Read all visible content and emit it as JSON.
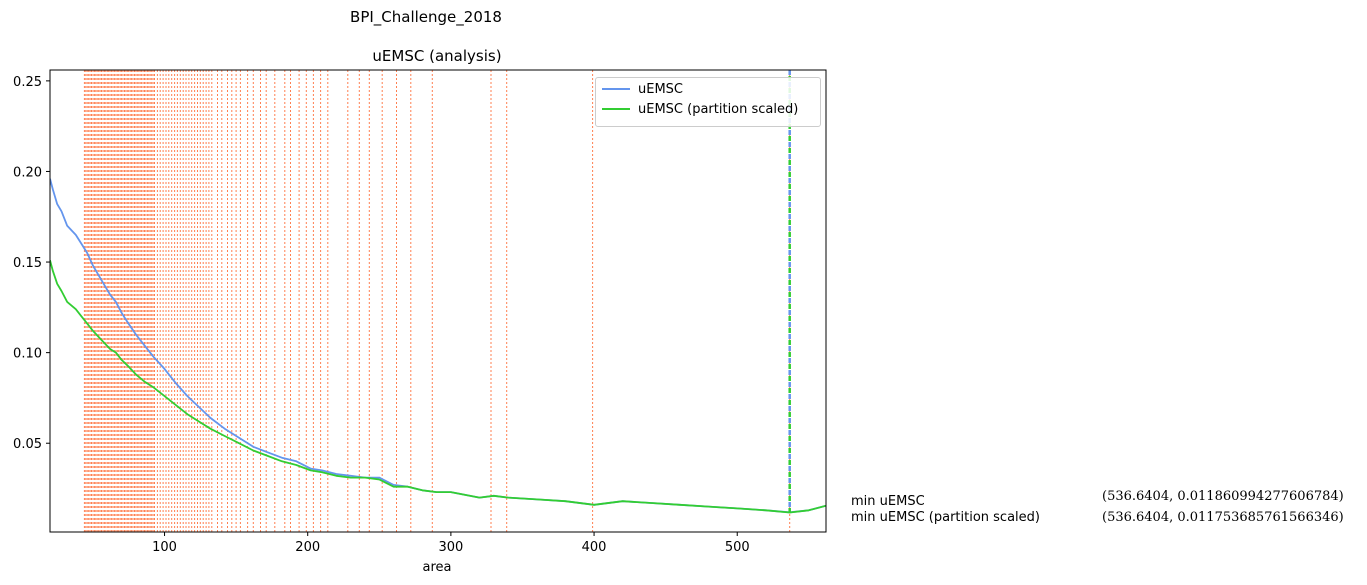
{
  "suptitle": "BPI_Challenge_2018",
  "chart_data": {
    "type": "line",
    "title": "uEMSC (analysis)",
    "xlabel": "area",
    "ylabel": "",
    "xlim": [
      20,
      562
    ],
    "ylim": [
      0.001,
      0.256
    ],
    "xticks": [
      100,
      200,
      300,
      400,
      500
    ],
    "yticks": [
      0.05,
      0.1,
      0.15,
      0.2,
      0.25
    ],
    "ytick_labels": [
      "0.05",
      "0.10",
      "0.15",
      "0.20",
      "0.25"
    ],
    "xtick_labels": [
      "100",
      "200",
      "300",
      "400",
      "500"
    ],
    "grid": false,
    "legend_position": "top-right",
    "colors": {
      "uemsc": "#6495ed",
      "uemsc_scaled": "#32cd32",
      "vlines": "#ff7f50"
    },
    "series": [
      {
        "name": "uEMSC",
        "x": [
          20,
          22,
          25,
          28,
          32,
          38,
          42,
          46,
          50,
          56,
          62,
          66,
          70,
          74,
          80,
          86,
          92,
          100,
          108,
          116,
          124,
          132,
          142,
          152,
          162,
          172,
          182,
          192,
          202,
          210,
          220,
          230,
          240,
          250,
          260,
          270,
          280,
          290,
          300,
          320,
          330,
          340,
          360,
          380,
          400,
          420,
          440,
          460,
          480,
          500,
          520,
          536.6404,
          550,
          562
        ],
        "y": [
          0.196,
          0.19,
          0.182,
          0.178,
          0.17,
          0.165,
          0.16,
          0.155,
          0.148,
          0.14,
          0.132,
          0.128,
          0.122,
          0.117,
          0.11,
          0.104,
          0.098,
          0.091,
          0.083,
          0.076,
          0.07,
          0.064,
          0.058,
          0.053,
          0.048,
          0.045,
          0.042,
          0.04,
          0.036,
          0.035,
          0.033,
          0.032,
          0.031,
          0.031,
          0.027,
          0.026,
          0.024,
          0.023,
          0.023,
          0.02,
          0.021,
          0.02,
          0.019,
          0.018,
          0.016,
          0.018,
          0.017,
          0.016,
          0.015,
          0.014,
          0.013,
          0.01186,
          0.013,
          0.0155
        ]
      },
      {
        "name": "uEMSC (partition scaled)",
        "x": [
          20,
          22,
          25,
          28,
          32,
          38,
          42,
          46,
          50,
          56,
          62,
          66,
          70,
          74,
          80,
          86,
          92,
          100,
          108,
          116,
          124,
          132,
          142,
          152,
          162,
          172,
          182,
          192,
          202,
          210,
          220,
          230,
          240,
          250,
          260,
          270,
          280,
          290,
          300,
          320,
          330,
          340,
          360,
          380,
          400,
          420,
          440,
          460,
          480,
          500,
          520,
          536.6404,
          550,
          562
        ],
        "y": [
          0.151,
          0.145,
          0.138,
          0.134,
          0.128,
          0.124,
          0.12,
          0.116,
          0.112,
          0.107,
          0.102,
          0.1,
          0.096,
          0.093,
          0.088,
          0.084,
          0.081,
          0.076,
          0.071,
          0.066,
          0.062,
          0.058,
          0.054,
          0.05,
          0.046,
          0.043,
          0.04,
          0.038,
          0.035,
          0.034,
          0.032,
          0.031,
          0.031,
          0.03,
          0.026,
          0.026,
          0.024,
          0.023,
          0.023,
          0.02,
          0.021,
          0.02,
          0.019,
          0.018,
          0.016,
          0.018,
          0.017,
          0.016,
          0.015,
          0.014,
          0.013,
          0.011754,
          0.013,
          0.0155
        ]
      }
    ],
    "vlines": [
      44,
      45,
      46,
      47,
      48,
      49,
      50,
      51,
      52,
      53,
      54,
      55,
      56,
      57,
      58,
      59,
      60,
      61,
      62,
      63,
      64,
      65,
      66,
      67,
      68,
      69,
      70,
      71,
      72,
      73,
      74,
      75,
      76,
      77,
      78,
      79,
      80,
      81,
      82,
      83,
      84,
      85,
      86,
      87,
      88,
      89,
      90,
      91,
      92,
      93,
      95,
      97,
      99,
      101,
      103,
      105,
      107,
      109,
      111,
      113,
      115,
      117,
      119,
      121,
      123,
      125,
      127,
      129,
      131,
      133,
      137,
      140,
      144,
      147,
      150,
      153,
      158,
      162,
      167,
      171,
      177,
      184,
      188,
      194,
      199,
      204,
      209,
      214,
      228,
      236,
      243,
      252,
      262,
      272,
      287,
      328,
      339,
      399,
      536.6404
    ],
    "markers": [
      {
        "label": "min uEMSC",
        "value": "(536.6404, 0.011860994277606784)",
        "x": 536.6404,
        "y": 0.011860994277606784
      },
      {
        "label": "min uEMSC (partition scaled)",
        "value": "(536.6404, 0.011753685761566346)",
        "x": 536.6404,
        "y": 0.011753685761566346
      }
    ]
  }
}
